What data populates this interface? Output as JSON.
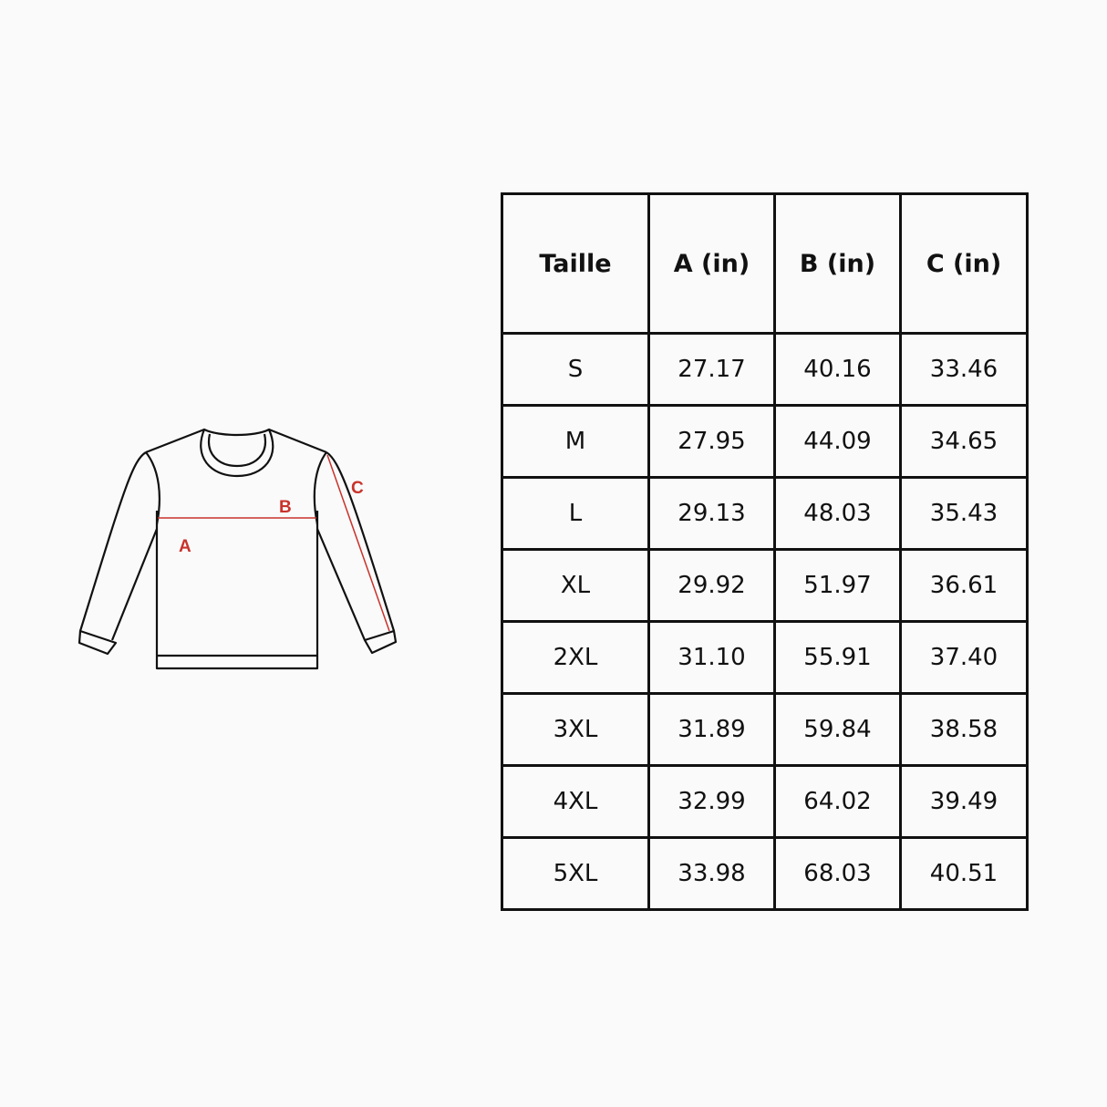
{
  "diagram": {
    "labels": {
      "a": "A",
      "b": "B",
      "c": "C"
    },
    "accent_color": "#c8332b",
    "outline_color": "#111111"
  },
  "table": {
    "headers": [
      "Taille",
      "A (in)",
      "B (in)",
      "C (in)"
    ],
    "rows": [
      [
        "S",
        "27.17",
        "40.16",
        "33.46"
      ],
      [
        "M",
        "27.95",
        "44.09",
        "34.65"
      ],
      [
        "L",
        "29.13",
        "48.03",
        "35.43"
      ],
      [
        "XL",
        "29.92",
        "51.97",
        "36.61"
      ],
      [
        "2XL",
        "31.10",
        "55.91",
        "37.40"
      ],
      [
        "3XL",
        "31.89",
        "59.84",
        "38.58"
      ],
      [
        "4XL",
        "32.99",
        "64.02",
        "39.49"
      ],
      [
        "5XL",
        "33.98",
        "68.03",
        "40.51"
      ]
    ]
  }
}
